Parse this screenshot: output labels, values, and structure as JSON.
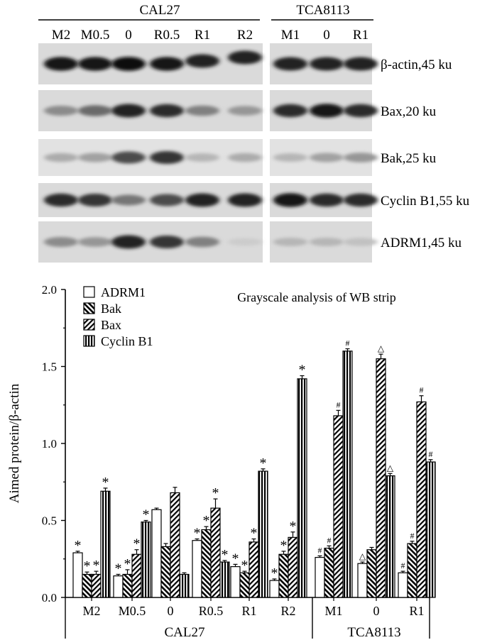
{
  "blot": {
    "groups": [
      {
        "name": "CAL27",
        "lanes": [
          "M2",
          "M0.5",
          "0",
          "R0.5",
          "R1",
          "R2"
        ]
      },
      {
        "name": "TCA8113",
        "lanes": [
          "M1",
          "0",
          "R1"
        ]
      }
    ],
    "strips": [
      {
        "label": "β-actin,45 ku",
        "intensity": [
          0.95,
          0.95,
          0.97,
          0.95,
          0.9,
          0.9,
          0.9,
          0.9,
          0.9
        ]
      },
      {
        "label": "Bax,20 ku",
        "intensity": [
          0.4,
          0.55,
          0.9,
          0.85,
          0.45,
          0.35,
          0.85,
          0.95,
          0.85
        ]
      },
      {
        "label": "Bak,25 ku",
        "intensity": [
          0.25,
          0.3,
          0.7,
          0.8,
          0.2,
          0.25,
          0.2,
          0.3,
          0.35
        ]
      },
      {
        "label": "Cyclin B1,55 ku",
        "intensity": [
          0.85,
          0.8,
          0.5,
          0.7,
          0.9,
          0.9,
          0.95,
          0.85,
          0.85
        ]
      },
      {
        "label": "ADRM1,45 ku",
        "intensity": [
          0.4,
          0.35,
          0.9,
          0.8,
          0.45,
          0.1,
          0.2,
          0.2,
          0.15
        ]
      }
    ]
  },
  "chart_data": {
    "type": "bar",
    "title": "Grayscale analysis of WB strip",
    "ylabel": "Aimed protein/β-actin",
    "xlabel": "",
    "ylim": [
      0,
      2.0
    ],
    "yticks": [
      "0.0",
      "0.5",
      "1.0",
      "1.5",
      "2.0"
    ],
    "categories": [
      "M2",
      "M0.5",
      "0",
      "R0.5",
      "R1",
      "R2",
      "M1",
      "0",
      "R1"
    ],
    "groups": [
      {
        "name": "CAL27",
        "from": 0,
        "to": 5
      },
      {
        "name": "TCA8113",
        "from": 6,
        "to": 8
      }
    ],
    "series": [
      {
        "name": "ADRM1",
        "pattern": "white",
        "values": [
          0.29,
          0.14,
          0.57,
          0.37,
          0.2,
          0.11,
          0.26,
          0.22,
          0.16
        ],
        "errors": [
          0.01,
          0.01,
          0.01,
          0.01,
          0.015,
          0.01,
          0.01,
          0.01,
          0.01
        ],
        "marks": [
          "*",
          "*",
          "",
          "*",
          "*",
          "*",
          "#",
          "△",
          "#"
        ]
      },
      {
        "name": "Bak",
        "pattern": "diag-right",
        "values": [
          0.15,
          0.15,
          0.33,
          0.44,
          0.16,
          0.28,
          0.32,
          0.31,
          0.35
        ],
        "errors": [
          0.015,
          0.03,
          0.02,
          0.02,
          0.01,
          0.02,
          0.015,
          0.015,
          0.015
        ],
        "marks": [
          "*",
          "*",
          "",
          "*",
          "*",
          "*",
          "#",
          "",
          "#"
        ]
      },
      {
        "name": "Bax",
        "pattern": "diag-left",
        "values": [
          0.15,
          0.28,
          0.68,
          0.58,
          0.36,
          0.39,
          1.18,
          1.55,
          1.27
        ],
        "errors": [
          0.02,
          0.03,
          0.035,
          0.06,
          0.02,
          0.035,
          0.035,
          0.03,
          0.04
        ],
        "marks": [
          "*",
          "*",
          "",
          "*",
          "*",
          "*",
          "#",
          "△",
          "#"
        ]
      },
      {
        "name": "Cyclin B1",
        "pattern": "vertical",
        "values": [
          0.69,
          0.49,
          0.15,
          0.23,
          0.82,
          1.42,
          1.6,
          0.79,
          0.88
        ],
        "errors": [
          0.02,
          0.01,
          0.01,
          0.01,
          0.015,
          0.02,
          0.015,
          0.015,
          0.015
        ],
        "marks": [
          "*",
          "*",
          "",
          "*",
          "*",
          "*",
          "#",
          "△",
          "#"
        ]
      }
    ]
  }
}
